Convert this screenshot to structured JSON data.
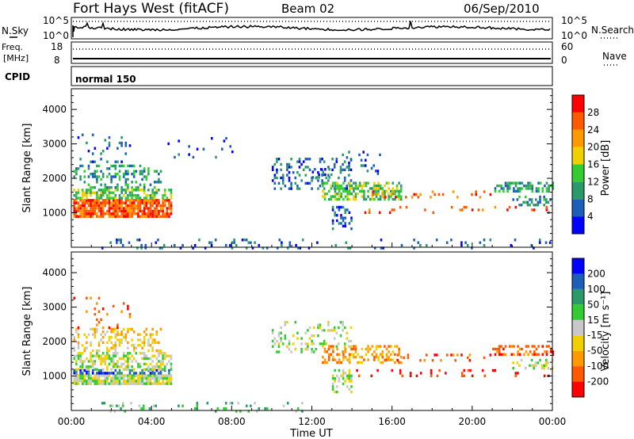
{
  "header": {
    "station": "Fort Hays West (fitACF)",
    "beam": "Beam 02",
    "date": "06/Sep/2010"
  },
  "chart_data": [
    {
      "type": "line",
      "panel": "noise",
      "left_label": "N.Sky",
      "right_label": "N.Search",
      "left_ticks": [
        "10^5",
        "10^0"
      ],
      "right_ticks": [
        "10^5",
        "10^0"
      ],
      "series": [
        {
          "name": "N.Sky",
          "style": "solid"
        },
        {
          "name": "N.Search",
          "style": "dotted"
        }
      ]
    },
    {
      "type": "line",
      "panel": "frequency",
      "left_label_1": "Freq.",
      "left_label_2": "[MHz]",
      "right_label": "Nave",
      "left_ticks": [
        18,
        8
      ],
      "right_ticks": [
        60,
        0
      ],
      "series": [
        {
          "name": "Freq.",
          "style": "solid"
        },
        {
          "name": "Nave",
          "style": "dotted"
        }
      ]
    },
    {
      "type": "table",
      "panel": "cpid",
      "label": "CPID",
      "program": "normal 150"
    },
    {
      "type": "heatmap",
      "panel": "power",
      "ylabel": "Slant Range [km]",
      "y_ticks": [
        1000,
        2000,
        3000,
        4000
      ],
      "ylim": [
        0,
        4600
      ],
      "xlim_hours": [
        0,
        24
      ],
      "colorbar_label": "Power [dB]",
      "colorbar_ticks": [
        "4",
        "8",
        "12",
        "16",
        "20",
        "24",
        "28"
      ],
      "colors": [
        "#0000ff",
        "#1c5fb8",
        "#2a9a6a",
        "#33cc33",
        "#f0d000",
        "#ff9900",
        "#ff5a00",
        "#ff0000"
      ],
      "regions": [
        {
          "t": [
            0.1,
            5.0
          ],
          "r": [
            900,
            1400
          ],
          "level": 6,
          "density": 0.85
        },
        {
          "t": [
            0.1,
            5.0
          ],
          "r": [
            1400,
            1700
          ],
          "level": 3,
          "density": 0.55
        },
        {
          "t": [
            0.1,
            4.5
          ],
          "r": [
            1700,
            2400
          ],
          "level": 2,
          "density": 0.3
        },
        {
          "t": [
            0.1,
            3.0
          ],
          "r": [
            2400,
            3300
          ],
          "level": 1,
          "density": 0.08
        },
        {
          "t": [
            4.8,
            8.0
          ],
          "r": [
            2500,
            3200
          ],
          "level": 1,
          "density": 0.06
        },
        {
          "t": [
            10.0,
            14.0
          ],
          "r": [
            1700,
            2600
          ],
          "level": 1,
          "density": 0.25
        },
        {
          "t": [
            12.0,
            13.0
          ],
          "r": [
            2000,
            2300
          ],
          "level": 1,
          "density": 0.45
        },
        {
          "t": [
            12.5,
            16.5
          ],
          "r": [
            1400,
            1900
          ],
          "level": 3,
          "density": 0.55
        },
        {
          "t": [
            13.0,
            14.0
          ],
          "r": [
            500,
            1200
          ],
          "level": 1,
          "density": 0.4
        },
        {
          "t": [
            13.5,
            15.5
          ],
          "r": [
            2100,
            2800
          ],
          "level": 1,
          "density": 0.12
        },
        {
          "t": [
            14.0,
            24.0
          ],
          "r": [
            1000,
            1200
          ],
          "level": 6,
          "density": 0.1
        },
        {
          "t": [
            15.0,
            21.0
          ],
          "r": [
            1450,
            1650
          ],
          "level": 6,
          "density": 0.15
        },
        {
          "t": [
            21.0,
            24.0
          ],
          "r": [
            1600,
            1900
          ],
          "level": 2,
          "density": 0.5
        },
        {
          "t": [
            22.0,
            24.0
          ],
          "r": [
            1200,
            1500
          ],
          "level": 2,
          "density": 0.35
        },
        {
          "t": [
            1.5,
            11.5
          ],
          "r": [
            0,
            250
          ],
          "level": 1,
          "density": 0.12
        },
        {
          "t": [
            11.5,
            24.0
          ],
          "r": [
            0,
            250
          ],
          "level": 1,
          "density": 0.05
        }
      ]
    },
    {
      "type": "heatmap",
      "panel": "velocity",
      "ylabel": "Slant Range [km]",
      "y_ticks": [
        1000,
        2000,
        3000,
        4000
      ],
      "ylim": [
        0,
        4600
      ],
      "xlim_hours": [
        0,
        24
      ],
      "xlabel": "Time UT",
      "x_ticks": [
        "00:00",
        "04:00",
        "08:00",
        "12:00",
        "16:00",
        "20:00",
        "00:00"
      ],
      "colorbar_label": "Velocity [m s⁻¹]",
      "colorbar_ticks": [
        "-200",
        "-100",
        "-50",
        "-15",
        "15",
        "50",
        "100",
        "200"
      ],
      "colors": [
        "#ff0000",
        "#ff5a00",
        "#ff9900",
        "#f0d000",
        "#c8c8c8",
        "#33cc33",
        "#2a9a6a",
        "#1c5fb8",
        "#0000ff"
      ],
      "regions": [
        {
          "t": [
            0.1,
            5.0
          ],
          "r": [
            800,
            1050
          ],
          "level": 4,
          "density": 0.9
        },
        {
          "t": [
            0.1,
            5.0
          ],
          "r": [
            1050,
            1200
          ],
          "level": 7,
          "density": 0.6
        },
        {
          "t": [
            0.1,
            5.0
          ],
          "r": [
            1200,
            1700
          ],
          "level": 4,
          "density": 0.5
        },
        {
          "t": [
            0.1,
            4.5
          ],
          "r": [
            1700,
            2400
          ],
          "level": 3,
          "density": 0.3
        },
        {
          "t": [
            0.1,
            3.0
          ],
          "r": [
            2400,
            3300
          ],
          "level": 1,
          "density": 0.08
        },
        {
          "t": [
            10.0,
            14.0
          ],
          "r": [
            1700,
            2600
          ],
          "level": 4,
          "density": 0.25
        },
        {
          "t": [
            12.5,
            16.5
          ],
          "r": [
            1400,
            1900
          ],
          "level": 2,
          "density": 0.45
        },
        {
          "t": [
            13.0,
            14.0
          ],
          "r": [
            500,
            1200
          ],
          "level": 4,
          "density": 0.4
        },
        {
          "t": [
            14.0,
            24.0
          ],
          "r": [
            1000,
            1200
          ],
          "level": 0,
          "density": 0.1
        },
        {
          "t": [
            15.0,
            21.0
          ],
          "r": [
            1450,
            1650
          ],
          "level": 1,
          "density": 0.15
        },
        {
          "t": [
            21.0,
            24.0
          ],
          "r": [
            1600,
            1900
          ],
          "level": 1,
          "density": 0.5
        },
        {
          "t": [
            22.0,
            24.0
          ],
          "r": [
            1200,
            1500
          ],
          "level": 4,
          "density": 0.35
        },
        {
          "t": [
            1.5,
            11.5
          ],
          "r": [
            0,
            250
          ],
          "level": 5,
          "density": 0.12
        }
      ]
    }
  ]
}
